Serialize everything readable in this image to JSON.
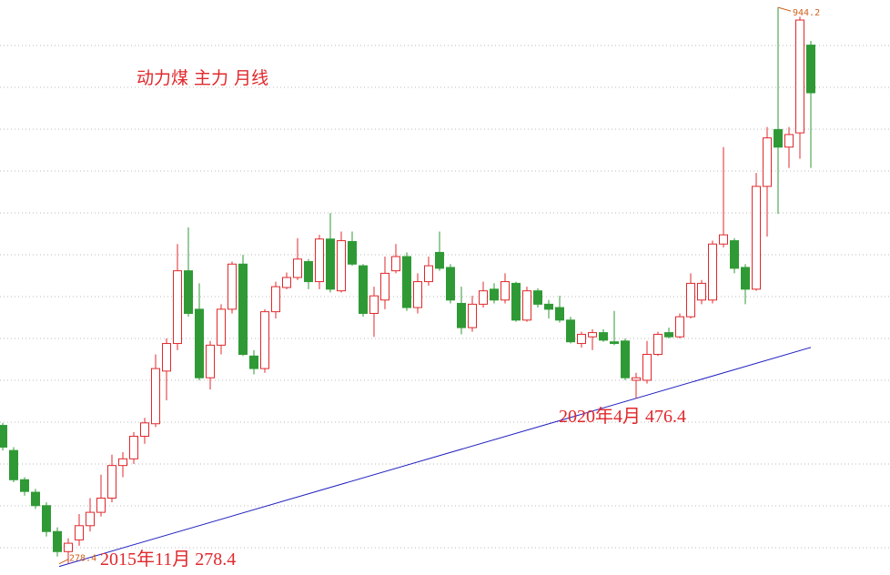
{
  "chart_data": {
    "type": "candlestick",
    "title": "动力煤 主力 月线",
    "open": [
      444,
      414,
      379,
      364,
      348,
      317,
      293,
      307,
      324,
      340,
      357,
      396,
      404,
      431,
      446,
      509,
      542,
      629,
      583,
      501,
      540,
      583,
      637,
      527,
      512,
      580,
      609,
      621,
      640,
      616,
      667,
      605,
      664,
      635,
      578,
      594,
      629,
      646,
      585,
      616,
      651,
      633,
      590,
      561,
      589,
      607,
      594,
      614,
      570,
      605,
      589,
      585,
      570,
      542,
      550,
      555,
      544,
      545,
      498,
      498,
      529,
      555,
      550,
      574,
      594,
      594,
      661,
      665,
      633,
      607,
      730,
      798,
      777,
      794,
      899
    ],
    "high": [
      447,
      418,
      382,
      368,
      352,
      322,
      309,
      338,
      357,
      385,
      409,
      412,
      436,
      453,
      529,
      548,
      661,
      681,
      614,
      545,
      589,
      640,
      648,
      534,
      583,
      616,
      627,
      668,
      643,
      672,
      698,
      676,
      676,
      637,
      610,
      646,
      661,
      651,
      626,
      646,
      676,
      637,
      610,
      599,
      616,
      614,
      626,
      616,
      610,
      608,
      594,
      599,
      574,
      556,
      559,
      559,
      581,
      548,
      507,
      545,
      556,
      561,
      578,
      626,
      618,
      665,
      777,
      668,
      637,
      746,
      801,
      944.2,
      801,
      933,
      904
    ],
    "low": [
      414,
      376,
      360,
      344,
      311,
      287,
      278.4,
      300,
      317,
      335,
      352,
      382,
      398,
      422,
      442,
      474,
      534,
      574,
      498,
      487,
      529,
      578,
      527,
      505,
      507,
      572,
      607,
      618,
      607,
      607,
      603,
      603,
      635,
      574,
      550,
      583,
      626,
      581,
      578,
      611,
      629,
      590,
      553,
      556,
      585,
      590,
      590,
      568,
      568,
      585,
      572,
      567,
      542,
      537,
      534,
      544,
      540,
      498,
      476.4,
      494,
      527,
      548,
      548,
      572,
      589,
      590,
      657,
      626,
      589,
      605,
      670,
      697,
      752,
      763,
      752
    ],
    "close": [
      418,
      379,
      365,
      348,
      317,
      293,
      303,
      324,
      340,
      357,
      396,
      404,
      431,
      447,
      512,
      542,
      629,
      578,
      501,
      540,
      583,
      637,
      529,
      512,
      580,
      610,
      621,
      643,
      616,
      667,
      607,
      665,
      637,
      578,
      599,
      626,
      646,
      585,
      616,
      635,
      632,
      594,
      561,
      589,
      605,
      594,
      616,
      570,
      605,
      589,
      583,
      570,
      544,
      553,
      555,
      546,
      542,
      501,
      501,
      529,
      553,
      550,
      574,
      614,
      614,
      661,
      672,
      632,
      607,
      730,
      788,
      777,
      792,
      929,
      842
    ],
    "up_color": "#e0282c",
    "down_color": "#2f9a35",
    "trend_color": "#2020c0",
    "ylim": [
      265,
      953
    ],
    "grid": true,
    "extreme_labels": {
      "low": "278.4",
      "high": "944.2"
    },
    "annotations": [
      "2015年11月  278.4",
      "2020年4月  476.4"
    ]
  }
}
